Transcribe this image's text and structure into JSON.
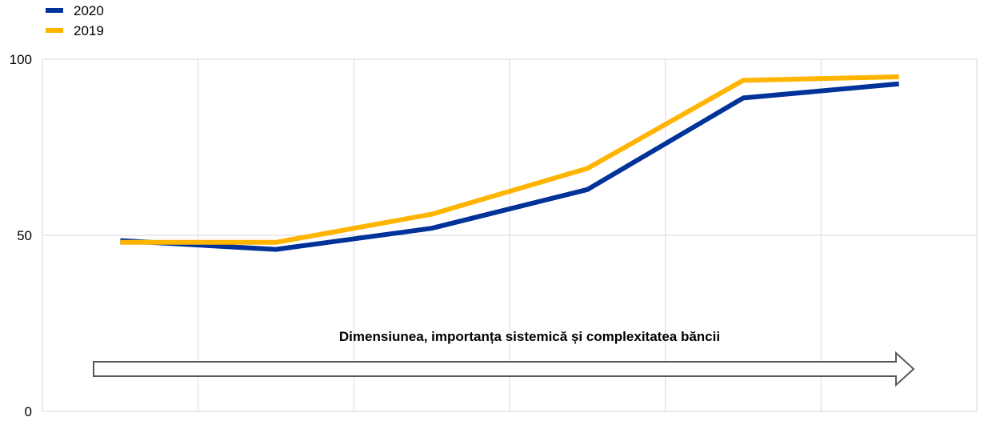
{
  "chart_data": {
    "type": "line",
    "title": "",
    "xlabel": "",
    "ylabel": "",
    "x": [
      1,
      2,
      3,
      4,
      5,
      6
    ],
    "ylim": [
      0,
      100
    ],
    "yticks": [
      0,
      50,
      100
    ],
    "ytick_labels": [
      "0",
      "50",
      "100"
    ],
    "grid": true,
    "legend_position": "top-left",
    "series": [
      {
        "name": "2020",
        "color": "#003299",
        "values": [
          48.5,
          46,
          52,
          63,
          89,
          93
        ]
      },
      {
        "name": "2019",
        "color": "#FFB400",
        "values": [
          48,
          48,
          56,
          69,
          94,
          95
        ]
      }
    ],
    "annotation": {
      "text": "Dimensiunea, importanța sistemică și complexitatea băncii",
      "arrow": true
    }
  }
}
